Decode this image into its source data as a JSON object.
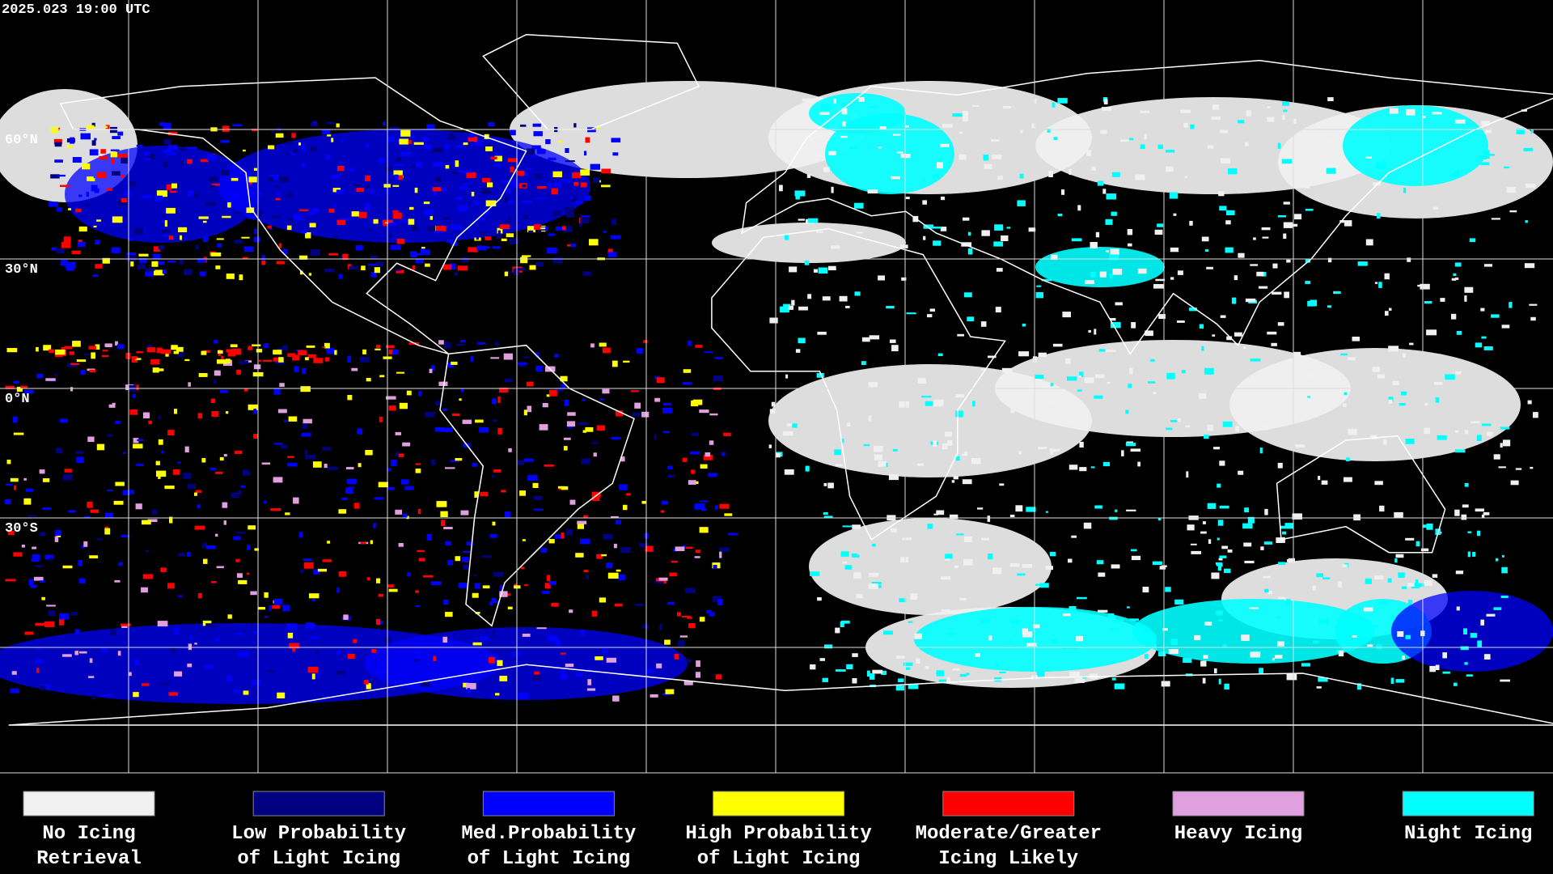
{
  "timestamp": "2025.023 19:00 UTC",
  "latitude_labels": [
    "60°N",
    "30°N",
    "0°N",
    "30°S"
  ],
  "legend": {
    "items": [
      {
        "label": [
          "No Icing",
          "Retrieval"
        ],
        "color": "#f0f0f0"
      },
      {
        "label": [
          "Low Probability",
          "of Light Icing"
        ],
        "color": "#000080"
      },
      {
        "label": [
          "Med.Probability",
          "of Light Icing"
        ],
        "color": "#0000ff"
      },
      {
        "label": [
          "High Probability",
          "of Light Icing"
        ],
        "color": "#ffff00"
      },
      {
        "label": [
          "Moderate/Greater",
          "Icing Likely"
        ],
        "color": "#ff0000"
      },
      {
        "label": [
          "Heavy Icing",
          ""
        ],
        "color": "#e0a0e0"
      },
      {
        "label": [
          "Night Icing",
          ""
        ],
        "color": "#00ffff"
      }
    ]
  }
}
